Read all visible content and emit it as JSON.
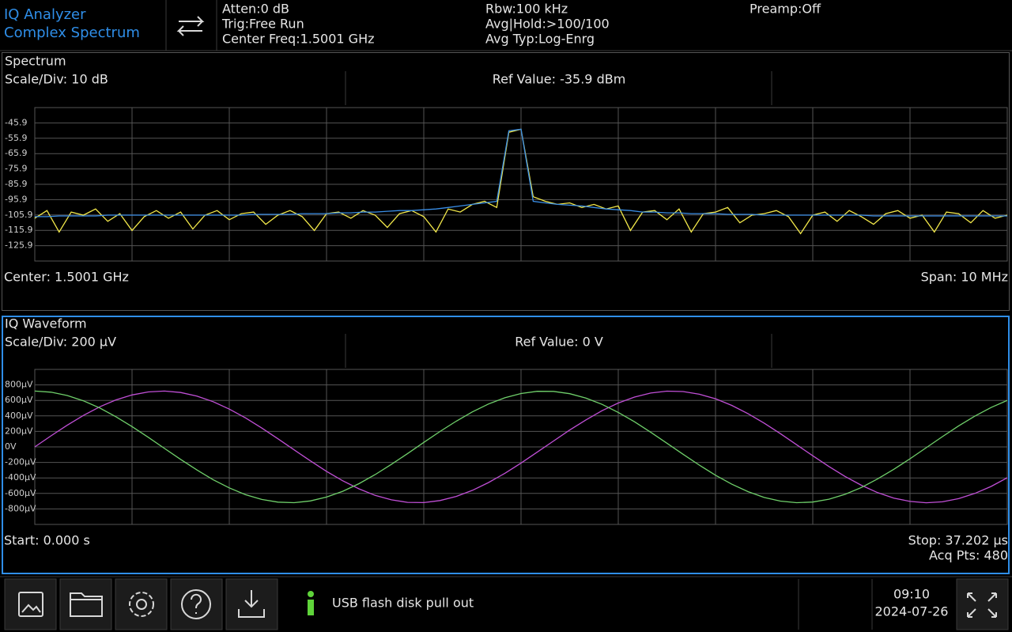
{
  "header": {
    "mode": "IQ Analyzer",
    "view": "Complex Spectrum",
    "atten": "Atten:0 dB",
    "trig": "Trig:Free Run",
    "center_freq": "Center Freq:1.5001 GHz",
    "rbw": "Rbw:100 kHz",
    "avg_hold": "Avg|Hold:>100/100",
    "avg_type": "Avg Typ:Log-Enrg",
    "preamp": "Preamp:Off"
  },
  "spectrum": {
    "title": "Spectrum",
    "scale_div": "Scale/Div: 10 dB",
    "ref_value": "Ref Value: -35.9 dBm",
    "center": "Center: 1.5001 GHz",
    "span": "Span: 10 MHz",
    "chart": {
      "type": "line",
      "ylim": [
        -135.9,
        -35.9
      ],
      "yticks": [
        -45.9,
        -55.9,
        -65.9,
        -75.9,
        -85.9,
        -95.9,
        -105.9,
        -115.9,
        -125.9
      ],
      "grid": true,
      "series": [
        {
          "color": "#f2e84a",
          "values": [
            -108,
            -103,
            -117,
            -104,
            -106,
            -102,
            -110,
            -105,
            -116,
            -107,
            -103,
            -108,
            -104,
            -115,
            -106,
            -103,
            -109,
            -105,
            -104,
            -112,
            -106,
            -103,
            -107,
            -116,
            -105,
            -104,
            -108,
            -103,
            -106,
            -114,
            -105,
            -103,
            -107,
            -117,
            -102,
            -104,
            -99,
            -97,
            -101,
            -52,
            -50,
            -94,
            -97,
            -99,
            -98,
            -101,
            -99,
            -102,
            -100,
            -116,
            -104,
            -103,
            -109,
            -102,
            -117,
            -105,
            -104,
            -101,
            -111,
            -106,
            -105,
            -103,
            -107,
            -118,
            -106,
            -104,
            -110,
            -103,
            -107,
            -112,
            -105,
            -103,
            -108,
            -106,
            -117,
            -104,
            -105,
            -111,
            -103,
            -108,
            -106
          ]
        },
        {
          "color": "#3a8ee6",
          "values": [
            -107,
            -107,
            -106.5,
            -106.5,
            -106.5,
            -106.5,
            -106,
            -106,
            -106,
            -106,
            -106,
            -106,
            -106,
            -106,
            -106,
            -106,
            -106,
            -106,
            -105.5,
            -105.5,
            -105.5,
            -105.5,
            -105,
            -105,
            -105,
            -104.5,
            -104.5,
            -104,
            -104,
            -103.5,
            -103,
            -103,
            -102.5,
            -102,
            -101,
            -100,
            -99,
            -98,
            -97,
            -51,
            -50,
            -97,
            -98,
            -99,
            -99.5,
            -100,
            -101,
            -102,
            -102.5,
            -103,
            -104,
            -104,
            -104.5,
            -104.5,
            -105,
            -105,
            -105,
            -105.5,
            -105.5,
            -105.5,
            -106,
            -106,
            -106,
            -106,
            -106,
            -106,
            -106,
            -106,
            -106,
            -106.5,
            -106.5,
            -106.5,
            -106.5,
            -106.5,
            -106.5,
            -106.5,
            -106.5,
            -106.5,
            -106.5,
            -106.5,
            -106.5
          ]
        }
      ]
    }
  },
  "iq": {
    "title": "IQ Waveform",
    "scale_div": "Scale/Div: 200 µV",
    "ref_value": "Ref Value: 0 V",
    "start": "Start: 0.000 s",
    "stop": "Stop: 37.202 µs",
    "acq_pts": "Acq Pts: 480",
    "chart": {
      "type": "line",
      "ylim": [
        -1000,
        1000
      ],
      "yticks": [
        {
          "value": 800,
          "label": "800µV"
        },
        {
          "value": 600,
          "label": "600µV"
        },
        {
          "value": 400,
          "label": "400µV"
        },
        {
          "value": 200,
          "label": "200µV"
        },
        {
          "value": 0,
          "label": "0V"
        },
        {
          "value": -200,
          "label": "-200µV"
        },
        {
          "value": -400,
          "label": "-400µV"
        },
        {
          "value": -600,
          "label": "-600µV"
        },
        {
          "value": -800,
          "label": "-800µV"
        }
      ],
      "grid": true,
      "series": [
        {
          "color": "#c04fd6",
          "values": [
            0,
            143,
            280,
            406,
            516,
            606,
            670,
            709,
            720,
            702,
            656,
            584,
            488,
            374,
            244,
            105,
            -38,
            -180,
            -315,
            -437,
            -541,
            -625,
            -683,
            -715,
            -718,
            -692,
            -639,
            -560,
            -459,
            -341,
            -208,
            -67,
            76,
            217,
            348,
            467,
            566,
            643,
            695,
            719,
            714,
            680,
            621,
            536,
            430,
            307,
            171,
            29,
            -114,
            -253,
            -382,
            -495,
            -590,
            -660,
            -703,
            -720,
            -708,
            -667,
            -600,
            -510,
            -398
          ]
        },
        {
          "color": "#6fcf6a",
          "values": [
            720,
            706,
            663,
            595,
            503,
            390,
            262,
            124,
            -19,
            -161,
            -297,
            -422,
            -529,
            -616,
            -678,
            -712,
            -719,
            -697,
            -647,
            -572,
            -474,
            -357,
            -226,
            -86,
            58,
            199,
            332,
            452,
            554,
            634,
            689,
            717,
            716,
            687,
            630,
            549,
            445,
            324,
            190,
            48,
            -95,
            -235,
            -365,
            -481,
            -577,
            -652,
            -699,
            -719,
            -711,
            -674,
            -611,
            -523,
            -412,
            -289,
            -153,
            -10,
            133,
            271,
            397,
            508,
            600
          ]
        }
      ]
    }
  },
  "status": {
    "message": "USB flash disk pull out",
    "time": "09:10",
    "date": "2024-07-26"
  }
}
